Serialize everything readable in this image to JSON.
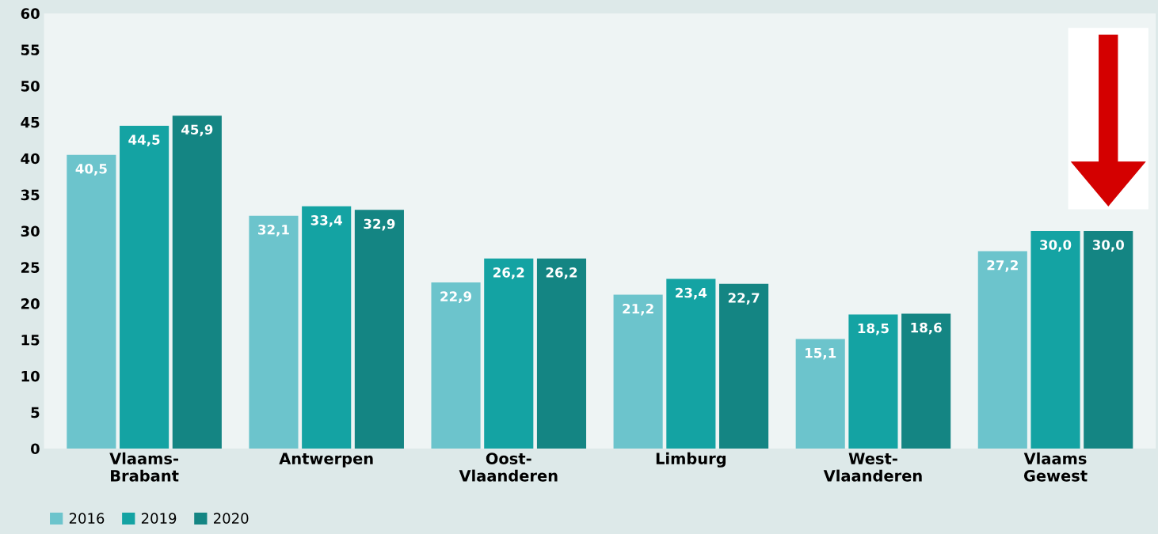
{
  "chart_data": {
    "type": "bar",
    "categories": [
      "Vlaams-\nBrabant",
      "Antwerpen",
      "Oost-\nVlaanderen",
      "Limburg",
      "West-\nVlaanderen",
      "Vlaams\nGewest"
    ],
    "series": [
      {
        "name": "2016",
        "color": "#6cc4cc",
        "values": [
          40.5,
          32.1,
          22.9,
          21.2,
          15.1,
          27.2
        ],
        "value_labels": [
          "40,5",
          "32,1",
          "22,9",
          "21,2",
          "15,1",
          "27,2"
        ]
      },
      {
        "name": "2019",
        "color": "#14a3a3",
        "values": [
          44.5,
          33.4,
          26.2,
          23.4,
          18.5,
          30.0
        ],
        "value_labels": [
          "44,5",
          "33,4",
          "26,2",
          "23,4",
          "18,5",
          "30,0"
        ]
      },
      {
        "name": "2020",
        "color": "#148583",
        "values": [
          45.9,
          32.9,
          26.2,
          22.7,
          18.6,
          30.0
        ],
        "value_labels": [
          "45,9",
          "32,9",
          "26,2",
          "22,7",
          "18,6",
          "30,0"
        ]
      }
    ],
    "ylim": [
      0,
      60
    ],
    "yticks": [
      0,
      5,
      10,
      15,
      20,
      25,
      30,
      35,
      40,
      45,
      50,
      55,
      60
    ],
    "grid": false,
    "legend": "bottom left"
  }
}
